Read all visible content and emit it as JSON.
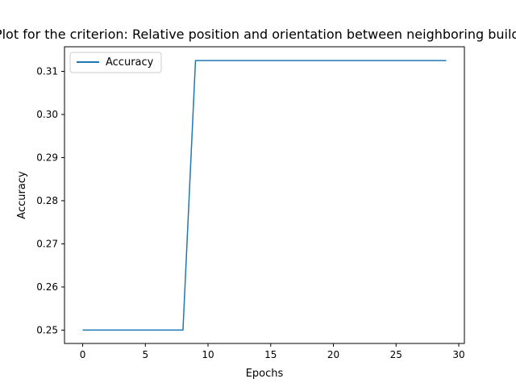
{
  "chart_data": {
    "type": "line",
    "title": "Accuracy Plot for the criterion: Relative position and orientation between neighboring building blocks",
    "xlabel": "Epochs",
    "ylabel": "Accuracy",
    "xlim": [
      -1.45,
      30.45
    ],
    "ylim": [
      0.2469,
      0.3157
    ],
    "xticks": [
      0,
      5,
      10,
      15,
      20,
      25,
      30
    ],
    "yticks": [
      0.25,
      0.26,
      0.27,
      0.28,
      0.29,
      0.3,
      0.31
    ],
    "ytick_labels": [
      "0.25",
      "0.26",
      "0.27",
      "0.28",
      "0.29",
      "0.30",
      "0.31"
    ],
    "grid": false,
    "legend_position": "top-left",
    "series": [
      {
        "name": "Accuracy",
        "color": "#1f77b4",
        "x": [
          0,
          1,
          2,
          3,
          4,
          5,
          6,
          7,
          8,
          9,
          10,
          11,
          12,
          13,
          14,
          15,
          16,
          17,
          18,
          19,
          20,
          21,
          22,
          23,
          24,
          25,
          26,
          27,
          28,
          29
        ],
        "y": [
          0.25,
          0.25,
          0.25,
          0.25,
          0.25,
          0.25,
          0.25,
          0.25,
          0.25,
          0.3125,
          0.3125,
          0.3125,
          0.3125,
          0.3125,
          0.3125,
          0.3125,
          0.3125,
          0.3125,
          0.3125,
          0.3125,
          0.3125,
          0.3125,
          0.3125,
          0.3125,
          0.3125,
          0.3125,
          0.3125,
          0.3125,
          0.3125,
          0.3125
        ]
      }
    ]
  }
}
